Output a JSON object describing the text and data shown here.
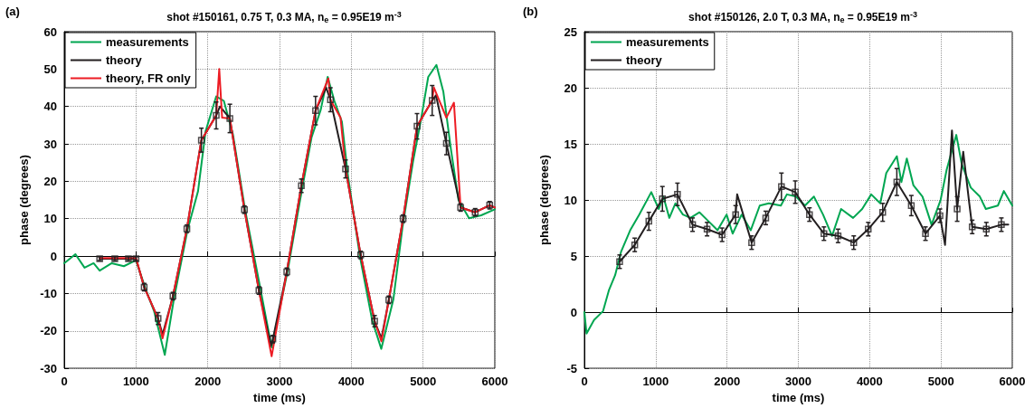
{
  "chart_data": [
    {
      "type": "line",
      "title": "shot #150161, 0.75 T, 0.3 MA, n$_{e}$ = 0.95E19 m$^{-3}$",
      "xlabel": "time (ms)",
      "ylabel": "phase (degrees)",
      "annotations": [
        "(a)"
      ],
      "xlim": [
        0,
        6000
      ],
      "ylim": [
        -30,
        60
      ],
      "xticks": [
        0,
        1000,
        2000,
        3000,
        4000,
        5000,
        6000
      ],
      "yticks": [
        -30,
        -20,
        -10,
        0,
        10,
        20,
        30,
        40,
        50,
        60
      ],
      "grid": true,
      "legend": "top left",
      "marker": "none",
      "line_style": "solid",
      "series": [
        {
          "name": "measurements",
          "color": "#00a651",
          "x": [
            0,
            156,
            283,
            409,
            494,
            662,
            831,
            1000,
            1127,
            1253,
            1401,
            1527,
            1717,
            1865,
            1970,
            2118,
            2224,
            2350,
            2519,
            2730,
            2890,
            3110,
            3278,
            3447,
            3574,
            3671,
            3764,
            3869,
            3954,
            4122,
            4291,
            4418,
            4586,
            4713,
            4861,
            4966,
            5072,
            5186,
            5283,
            5388,
            5494,
            5641,
            5810,
            6000
          ],
          "values": [
            -1.9,
            0.5,
            -3.1,
            -1.9,
            -3.9,
            -1.9,
            -2.7,
            -1.1,
            -8.4,
            -14.8,
            -26.4,
            -11.6,
            6.9,
            17.4,
            33.4,
            42.7,
            41.5,
            32.6,
            12.5,
            -8.4,
            -24.4,
            -4.3,
            14.1,
            31.8,
            39.1,
            47.9,
            41.5,
            35.9,
            21.4,
            -0.3,
            -17.2,
            -24.8,
            -11.6,
            7.7,
            25.4,
            35.9,
            47.9,
            51.1,
            43.9,
            28.6,
            15.0,
            10.1,
            10.9,
            12.5
          ]
        },
        {
          "name": "theory",
          "color": "#231f20",
          "x": [
            494,
            705,
            895,
            1000,
            1114,
            1308,
            1370,
            1515,
            1709,
            1911,
            2118,
            2170,
            2308,
            2511,
            2713,
            2880,
            2907,
            3101,
            3304,
            3502,
            3650,
            3709,
            3920,
            4131,
            4325,
            4420,
            4523,
            4722,
            4916,
            5127,
            5180,
            5325,
            5523,
            5726,
            5928,
            6000
          ],
          "values": [
            -0.7,
            -0.7,
            -0.7,
            -0.7,
            -8.3,
            -16.7,
            -21,
            -10.7,
            7.3,
            31.0,
            37.6,
            40,
            36.8,
            12.4,
            -9.2,
            -24,
            -22.2,
            -4.2,
            18.8,
            38.9,
            45,
            41.8,
            23.3,
            0.3,
            -17.4,
            -22,
            -11.7,
            10.0,
            34.7,
            41.6,
            43,
            30.1,
            13.0,
            11.7,
            13.6,
            13
          ]
        },
        {
          "name": "theory, FR only",
          "color": "#ed1c24",
          "x": [
            494,
            705,
            1000,
            1114,
            1308,
            1370,
            1515,
            1709,
            1911,
            2118,
            2160,
            2200,
            2308,
            2511,
            2713,
            2890,
            3101,
            3304,
            3502,
            3680,
            3709,
            3850,
            3920,
            4131,
            4325,
            4420,
            4523,
            4722,
            4916,
            5127,
            5150,
            5325,
            5430,
            5523,
            5726,
            5928,
            6000
          ],
          "values": [
            -0.5,
            -0.5,
            -0.5,
            -8.3,
            -16.7,
            -22,
            -10.7,
            7.3,
            31.0,
            37.6,
            50,
            37,
            36.8,
            12.4,
            -9.2,
            -26.8,
            -4.2,
            18.8,
            38.9,
            47.5,
            41.8,
            37,
            23.3,
            0.3,
            -17.4,
            -22.8,
            -11.7,
            10.0,
            34.7,
            41.6,
            45.1,
            37,
            41,
            13.0,
            11.7,
            13.6,
            13
          ]
        },
        {
          "type": "scatter",
          "marker": "square",
          "color": "#231f20",
          "x": [
            494,
            705,
            895,
            1000,
            1114,
            1308,
            1515,
            1709,
            1911,
            2118,
            2308,
            2511,
            2713,
            2907,
            3101,
            3304,
            3502,
            3709,
            3920,
            4131,
            4325,
            4523,
            4722,
            4916,
            5127,
            5325,
            5523,
            5726,
            5928
          ],
          "values": [
            -0.7,
            -0.7,
            -0.7,
            -0.7,
            -8.3,
            -16.7,
            -10.7,
            7.3,
            31.0,
            37.6,
            36.8,
            12.4,
            -9.2,
            -22.2,
            -4.2,
            18.8,
            38.9,
            41.8,
            23.3,
            0.3,
            -17.4,
            -11.7,
            10.0,
            34.7,
            41.6,
            30.1,
            13.0,
            11.7,
            13.6
          ],
          "errors": [
            0.5,
            0.5,
            0.5,
            0.5,
            1,
            1.6,
            1,
            1,
            3.2,
            3.6,
            3.8,
            1,
            1,
            1,
            1,
            1.8,
            3.8,
            3.2,
            2.4,
            1,
            1.5,
            1,
            1,
            3.4,
            4,
            3,
            1,
            1,
            1
          ]
        }
      ]
    },
    {
      "type": "line",
      "title": "shot #150126, 2.0 T, 0.3 MA, n$_{e}$ = 0.95E19 m$^{-3}$",
      "xlabel": "time (ms)",
      "ylabel": "phase (degrees)",
      "annotations": [
        "(b)"
      ],
      "xlim": [
        0,
        6000
      ],
      "ylim": [
        -5,
        25
      ],
      "xticks": [
        0,
        1000,
        2000,
        3000,
        4000,
        5000,
        6000
      ],
      "yticks": [
        -5,
        0,
        5,
        10,
        15,
        20,
        25
      ],
      "grid": true,
      "legend": "top left",
      "marker": "none",
      "line_style": "solid",
      "series": [
        {
          "name": "measurements",
          "color": "#00a651",
          "x": [
            0,
            30,
            135,
            262,
            346,
            431,
            515,
            642,
            769,
            938,
            1043,
            1107,
            1191,
            1276,
            1381,
            1487,
            1614,
            1741,
            1867,
            1994,
            2079,
            2205,
            2332,
            2459,
            2586,
            2755,
            2839,
            2966,
            3093,
            3219,
            3346,
            3473,
            3599,
            3768,
            3895,
            4022,
            4149,
            4233,
            4381,
            4445,
            4521,
            4614,
            4741,
            4868,
            4995,
            5080,
            5215,
            5291,
            5418,
            5545,
            5629,
            5798,
            5882,
            6000
          ],
          "values": [
            0,
            -1.9,
            -0.7,
            0.1,
            2.0,
            3.3,
            5.4,
            7.3,
            8.7,
            10.7,
            9.2,
            10.3,
            8.4,
            9.7,
            8.7,
            8.4,
            8.9,
            8.1,
            7.3,
            8.7,
            7.0,
            8.7,
            7.3,
            9.5,
            9.7,
            9.5,
            10.5,
            10.3,
            9.5,
            10.3,
            8.7,
            6.8,
            9.2,
            8.4,
            9.2,
            10.5,
            9.7,
            12.4,
            13.9,
            11.6,
            13.7,
            11.3,
            10.3,
            7.8,
            10.0,
            12.7,
            15.8,
            13.2,
            11.1,
            10.3,
            9.2,
            9.5,
            10.8,
            9.5
          ]
        },
        {
          "name": "theory",
          "color": "#231f20",
          "x": [
            494,
            706,
            904,
            1094,
            1305,
            1517,
            1720,
            1931,
            2121,
            2142,
            2345,
            2543,
            2763,
            2957,
            3156,
            3359,
            3557,
            3777,
            3980,
            4183,
            4381,
            4584,
            4783,
            4986,
            5057,
            5154,
            5227,
            5312,
            5397,
            5438,
            5636,
            5847,
            5944
          ],
          "values": [
            4.5,
            6.0,
            8.1,
            10.1,
            10.5,
            7.8,
            7.4,
            6.9,
            8.7,
            10.5,
            6.2,
            8.4,
            11.2,
            10.7,
            8.7,
            7.0,
            6.8,
            6.2,
            7.4,
            8.9,
            11.6,
            9.5,
            7.0,
            8.6,
            6.0,
            16.2,
            9.2,
            14.3,
            9.7,
            7.6,
            7.4,
            7.8,
            7.8
          ]
        },
        {
          "type": "scatter",
          "marker": "square",
          "color": "#231f20",
          "x": [
            494,
            706,
            904,
            1094,
            1305,
            1517,
            1720,
            1931,
            2121,
            2345,
            2543,
            2763,
            2957,
            3156,
            3359,
            3557,
            3777,
            3980,
            4183,
            4381,
            4584,
            4783,
            4986,
            5227,
            5438,
            5636,
            5847
          ],
          "values": [
            4.5,
            6.0,
            8.1,
            10.1,
            10.5,
            7.8,
            7.4,
            6.9,
            8.7,
            6.2,
            8.4,
            11.2,
            10.7,
            8.7,
            7.0,
            6.8,
            6.2,
            7.4,
            8.9,
            11.6,
            9.5,
            7.0,
            8.6,
            9.2,
            7.6,
            7.4,
            7.8
          ],
          "errors": [
            0.6,
            0.6,
            0.8,
            1.1,
            1,
            0.6,
            0.6,
            0.6,
            0.8,
            0.6,
            0.6,
            1.2,
            1,
            0.6,
            0.6,
            0.6,
            0.6,
            0.6,
            0.8,
            1.2,
            0.9,
            0.6,
            0.6,
            1.1,
            0.6,
            0.6,
            0.6
          ]
        }
      ]
    }
  ]
}
